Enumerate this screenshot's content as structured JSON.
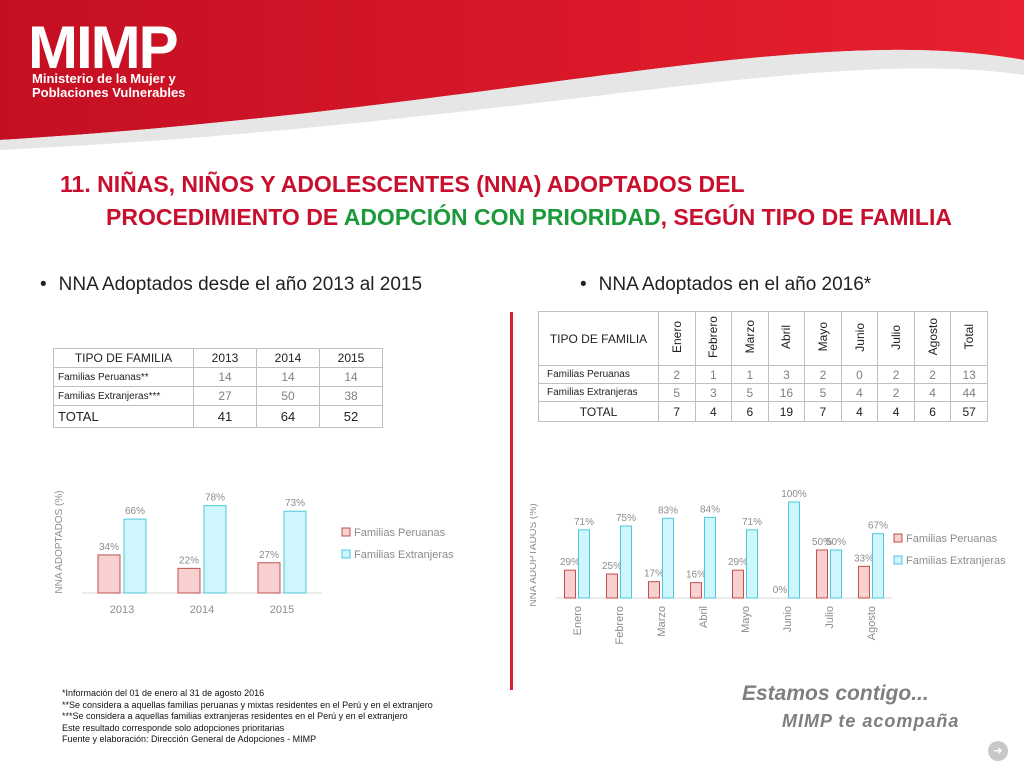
{
  "header": {
    "logo": "MIMP",
    "logo_sub_1": "Ministerio de la Mujer y",
    "logo_sub_2": "Poblaciones Vulnerables"
  },
  "title": {
    "line1": "11. NIÑAS, NIÑOS Y ADOLESCENTES (NNA) ADOPTADOS DEL",
    "line2_a": "PROCEDIMIENTO DE ",
    "line2_b": "ADOPCIÓN CON PRIORIDAD",
    "line2_c": ", SEGÚN TIPO DE FAMILIA"
  },
  "colors": {
    "brand_red": "#c8102e",
    "green": "#1a9a3a",
    "peruanas": "#f8d0d0",
    "extranjeras": "#cff6fc"
  },
  "left": {
    "bullet": "NNA Adoptados desde el año 2013 al 2015",
    "table": {
      "header": [
        "TIPO DE FAMILIA",
        "2013",
        "2014",
        "2015"
      ],
      "rows": [
        {
          "label": "Familias Peruanas**",
          "values": [
            "14",
            "14",
            "14"
          ]
        },
        {
          "label": "Familias Extranjeras***",
          "values": [
            "27",
            "50",
            "38"
          ]
        }
      ],
      "total": {
        "label": "TOTAL",
        "values": [
          "41",
          "64",
          "52"
        ]
      }
    }
  },
  "right": {
    "bullet": "NNA Adoptados en el año 2016*",
    "table": {
      "header": [
        "TIPO DE FAMILIA",
        "Enero",
        "Febrero",
        "Marzo",
        "Abril",
        "Mayo",
        "Junio",
        "Julio",
        "Agosto",
        "Total"
      ],
      "rows": [
        {
          "label": "Familias Peruanas",
          "values": [
            "2",
            "1",
            "1",
            "3",
            "2",
            "0",
            "2",
            "2",
            "13"
          ]
        },
        {
          "label": "Familias Extranjeras",
          "values": [
            "5",
            "3",
            "5",
            "16",
            "5",
            "4",
            "2",
            "4",
            "44"
          ]
        }
      ],
      "total": {
        "label": "TOTAL",
        "values": [
          "7",
          "4",
          "6",
          "19",
          "7",
          "4",
          "4",
          "6",
          "57"
        ]
      }
    }
  },
  "chart_data": [
    {
      "type": "bar",
      "categories": [
        "2013",
        "2014",
        "2015"
      ],
      "series": [
        {
          "name": "Familias Peruanas",
          "values": [
            34,
            22,
            27
          ],
          "labels": [
            "34%",
            "22%",
            "27%"
          ],
          "color": "#f8d0d0",
          "stroke": "#c0504d"
        },
        {
          "name": "Familias Extranjeras",
          "values": [
            66,
            78,
            73
          ],
          "labels": [
            "66%",
            "78%",
            "73%"
          ],
          "color": "#cff6fc",
          "stroke": "#4bc8dc"
        }
      ],
      "ylabel": "NNA ADOPTADOS (%)",
      "ylim": [
        0,
        100
      ],
      "legend": "right"
    },
    {
      "type": "bar",
      "categories": [
        "Enero",
        "Febrero",
        "Marzo",
        "Abril",
        "Mayo",
        "Junio",
        "Julio",
        "Agosto"
      ],
      "series": [
        {
          "name": "Familias Peruanas",
          "values": [
            29,
            25,
            17,
            16,
            29,
            0,
            50,
            33
          ],
          "labels": [
            "29%",
            "25%",
            "17%",
            "16%",
            "29%",
            "0%",
            "50%",
            "33%"
          ],
          "color": "#f8d0d0",
          "stroke": "#c0504d"
        },
        {
          "name": "Familias Extranjeras",
          "values": [
            71,
            75,
            83,
            84,
            71,
            100,
            50,
            67
          ],
          "labels": [
            "71%",
            "75%",
            "83%",
            "84%",
            "71%",
            "100%",
            "50%",
            "67%"
          ],
          "color": "#cff6fc",
          "stroke": "#4bc8dc"
        }
      ],
      "ylabel": "NNA ADOPTADOS (%)",
      "ylim": [
        0,
        100
      ],
      "legend": "right"
    }
  ],
  "notes": [
    "*Información del 01 de enero al 31 de agosto 2016",
    "**Se considera a aquellas familias peruanas y mixtas residentes en el Perú y en el extranjero",
    "***Se considera a aquellas familias extranjeras residentes en el Perú y en el extranjero",
    "Este resultado corresponde solo adopciones prioritarias",
    "Fuente y elaboración: Dirección General de Adopciones - MIMP"
  ],
  "slogan": {
    "line1": "Estamos contigo...",
    "line2": "MIMP te acompaña"
  },
  "nav_icon": "circle-arrow-icon"
}
